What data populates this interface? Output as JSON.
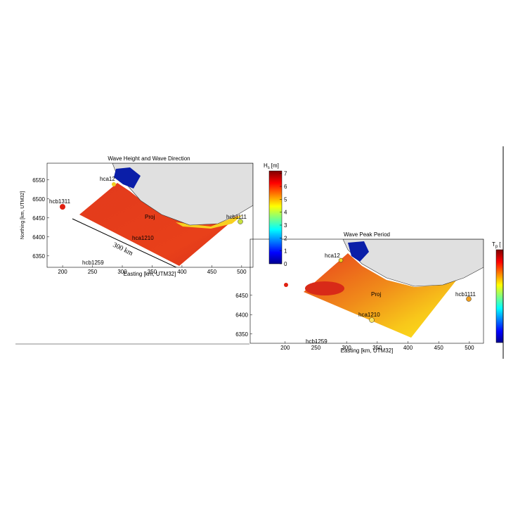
{
  "panels": [
    {
      "title": "Wave Height and Wave Direction",
      "xlabel": "Easting [km, UTM32]",
      "ylabel": "Northing [km, UTM32]",
      "xlim": [
        174,
        519
      ],
      "ylim": [
        6320,
        6594
      ],
      "xticks": [
        200,
        250,
        300,
        350,
        400,
        450,
        500
      ],
      "yticks": [
        6350,
        6400,
        6450,
        6500,
        6550
      ],
      "colorbar": {
        "label": "H",
        "label_sub": "s",
        "label_unit": "[m]",
        "lim": [
          0,
          7.2
        ],
        "ticks": [
          0,
          1,
          2,
          3,
          4,
          5,
          6,
          7
        ]
      },
      "stations": [
        {
          "label": "hcb1311"
        },
        {
          "label": "hca12"
        },
        {
          "label": "Proj"
        },
        {
          "label": "hca1210"
        },
        {
          "label": "hcb1111"
        },
        {
          "label": "hcb1259"
        }
      ],
      "annotation": "300 km"
    },
    {
      "title": "Wave Peak Period",
      "xlabel": "Easting [km, UTM32]",
      "xlim": [
        143,
        523
      ],
      "ylim": [
        6326,
        6595
      ],
      "xticks": [
        200,
        250,
        300,
        350,
        400,
        450,
        500
      ],
      "yticks": [
        6350,
        6400,
        6450
      ],
      "colorbar": {
        "label": "T",
        "label_sub": "p",
        "label_unit": "["
      },
      "stations": [
        {
          "label": "hca12"
        },
        {
          "label": "Proj"
        },
        {
          "label": "hcb1111"
        },
        {
          "label": "hca1210"
        },
        {
          "label": "hcb1259"
        }
      ]
    }
  ]
}
